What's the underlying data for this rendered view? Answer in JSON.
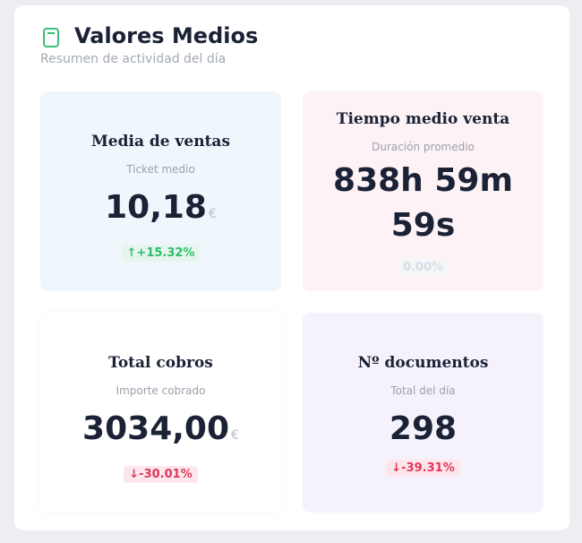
{
  "header": {
    "title": "Valores Medios",
    "subtitle": "Resumen de actividad del día",
    "icon": "document-icon",
    "icon_color": "#3bc07a"
  },
  "cards": [
    {
      "title": "Media de ventas",
      "subtitle": "Ticket medio",
      "value": "10,18",
      "unit": "€",
      "change": "↑+15.32%",
      "trend": "up"
    },
    {
      "title": "Tiempo medio venta",
      "subtitle": "Duración promedio",
      "value_line1": "838h 59m",
      "value_line2": "59s",
      "change": "0.00%",
      "trend": "neutral"
    },
    {
      "title": "Total cobros",
      "subtitle": "Importe cobrado",
      "value": "3034,00",
      "unit": "€",
      "change": "↓-30.01%",
      "trend": "down"
    },
    {
      "title": "Nº documentos",
      "subtitle": "Total del día",
      "value": "298",
      "change": "↓-39.31%",
      "trend": "down"
    }
  ],
  "colors": {
    "up": "#2cbe68",
    "down": "#e0375a",
    "card_blue": "#eff7fd",
    "card_pink": "#fdf2f5",
    "card_purple": "#f5f2fc"
  }
}
